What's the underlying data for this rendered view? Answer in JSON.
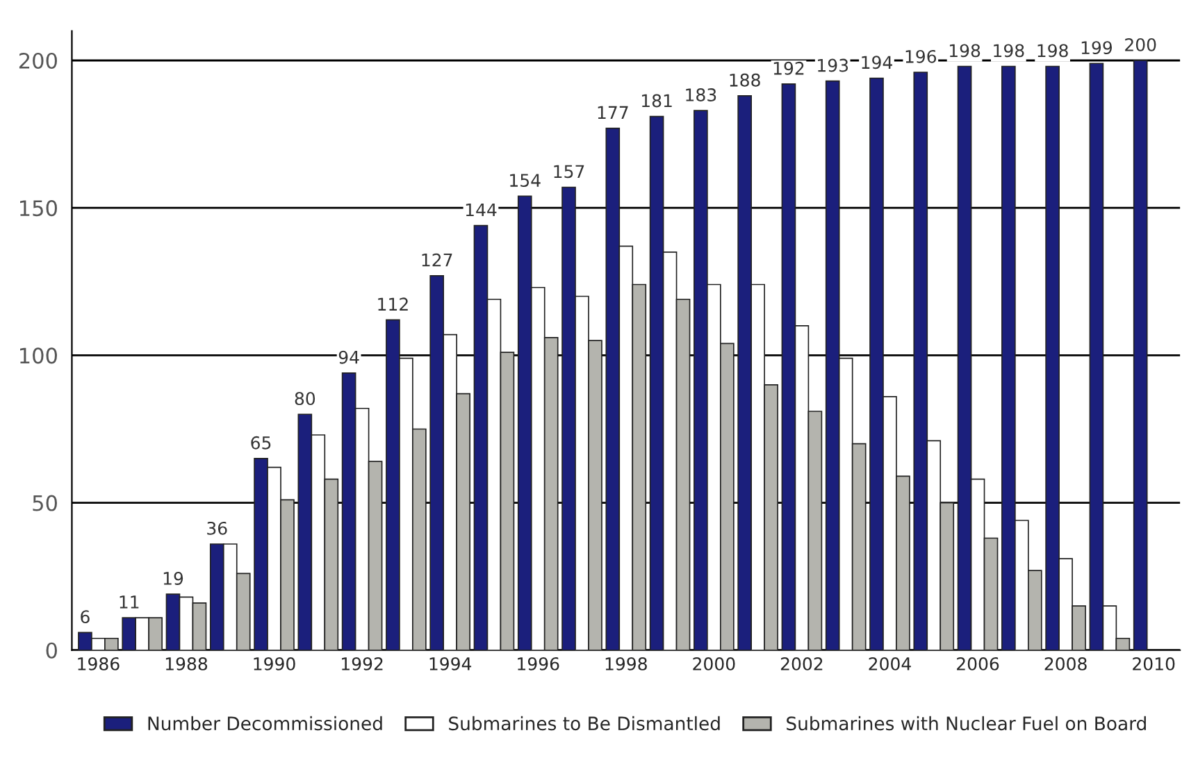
{
  "chart_data": {
    "type": "bar",
    "categories": [
      "1986",
      null,
      "1988",
      null,
      "1990",
      null,
      "1992",
      null,
      "1994",
      null,
      "1996",
      null,
      "1998",
      null,
      "2000",
      null,
      "2002",
      null,
      "2004",
      null,
      "2006",
      null,
      "2008",
      null,
      "2010"
    ],
    "series": [
      {
        "name": "Number Decommissioned",
        "color": "#1b1f7c",
        "values": [
          6,
          11,
          19,
          36,
          65,
          80,
          94,
          112,
          127,
          144,
          154,
          157,
          177,
          181,
          183,
          188,
          192,
          193,
          194,
          196,
          198,
          198,
          198,
          199,
          200
        ],
        "value_labels": [
          "6",
          "11",
          "19",
          "36",
          "65",
          "80",
          "94",
          "112",
          "127",
          "144",
          "154",
          "157",
          "177",
          "181",
          "183",
          "188",
          "192",
          "193",
          "194",
          "196",
          "198",
          "198",
          "198",
          "199",
          "200"
        ]
      },
      {
        "name": "Submarines to Be Dismantled",
        "color": "#ffffff",
        "values": [
          4,
          11,
          18,
          36,
          62,
          73,
          82,
          99,
          107,
          119,
          123,
          120,
          137,
          135,
          124,
          124,
          110,
          99,
          86,
          71,
          58,
          44,
          31,
          15,
          null
        ]
      },
      {
        "name": "Submarines with Nuclear Fuel on Board",
        "color": "#b4b4ae",
        "values": [
          4,
          11,
          16,
          26,
          51,
          58,
          64,
          75,
          87,
          101,
          106,
          105,
          124,
          119,
          104,
          90,
          81,
          70,
          59,
          50,
          38,
          27,
          15,
          4,
          null
        ]
      }
    ],
    "ylim": [
      0,
      210
    ],
    "yticks": [
      0,
      50,
      100,
      150,
      200
    ],
    "grid": "y",
    "legend": "bottom"
  }
}
